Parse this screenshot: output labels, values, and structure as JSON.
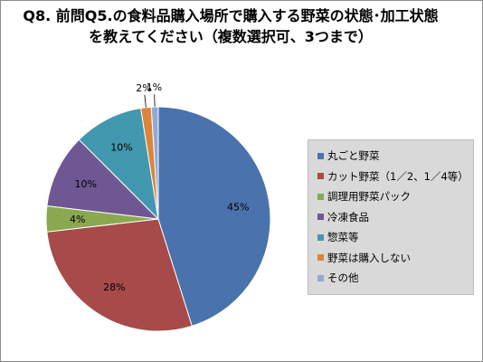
{
  "chart_data": {
    "type": "pie",
    "title": "Q8. 前問Q5.の食料品購入場所で購入する野菜の状態･加工状態を教えてください（複数選択可、3つまで）",
    "legend_position": "right",
    "slices": [
      {
        "label": "丸ごと野菜",
        "value": 45,
        "value_label": "45%",
        "color": "#4a72ac"
      },
      {
        "label": "カット野菜（1／2、1／4等）",
        "value": 28,
        "value_label": "28%",
        "color": "#a64b49"
      },
      {
        "label": "調理用野菜パック",
        "value": 4,
        "value_label": "4%",
        "color": "#8aa84f"
      },
      {
        "label": "冷凍食品",
        "value": 10,
        "value_label": "10%",
        "color": "#6f5793"
      },
      {
        "label": "惣菜等",
        "value": 10,
        "value_label": "10%",
        "color": "#4298ae"
      },
      {
        "label": "野菜は購入しない",
        "value": 2,
        "value_label": "2%",
        "color": "#db853c"
      },
      {
        "label": "その他",
        "value": 1,
        "value_label": "1%",
        "color": "#92a9d1"
      }
    ]
  }
}
